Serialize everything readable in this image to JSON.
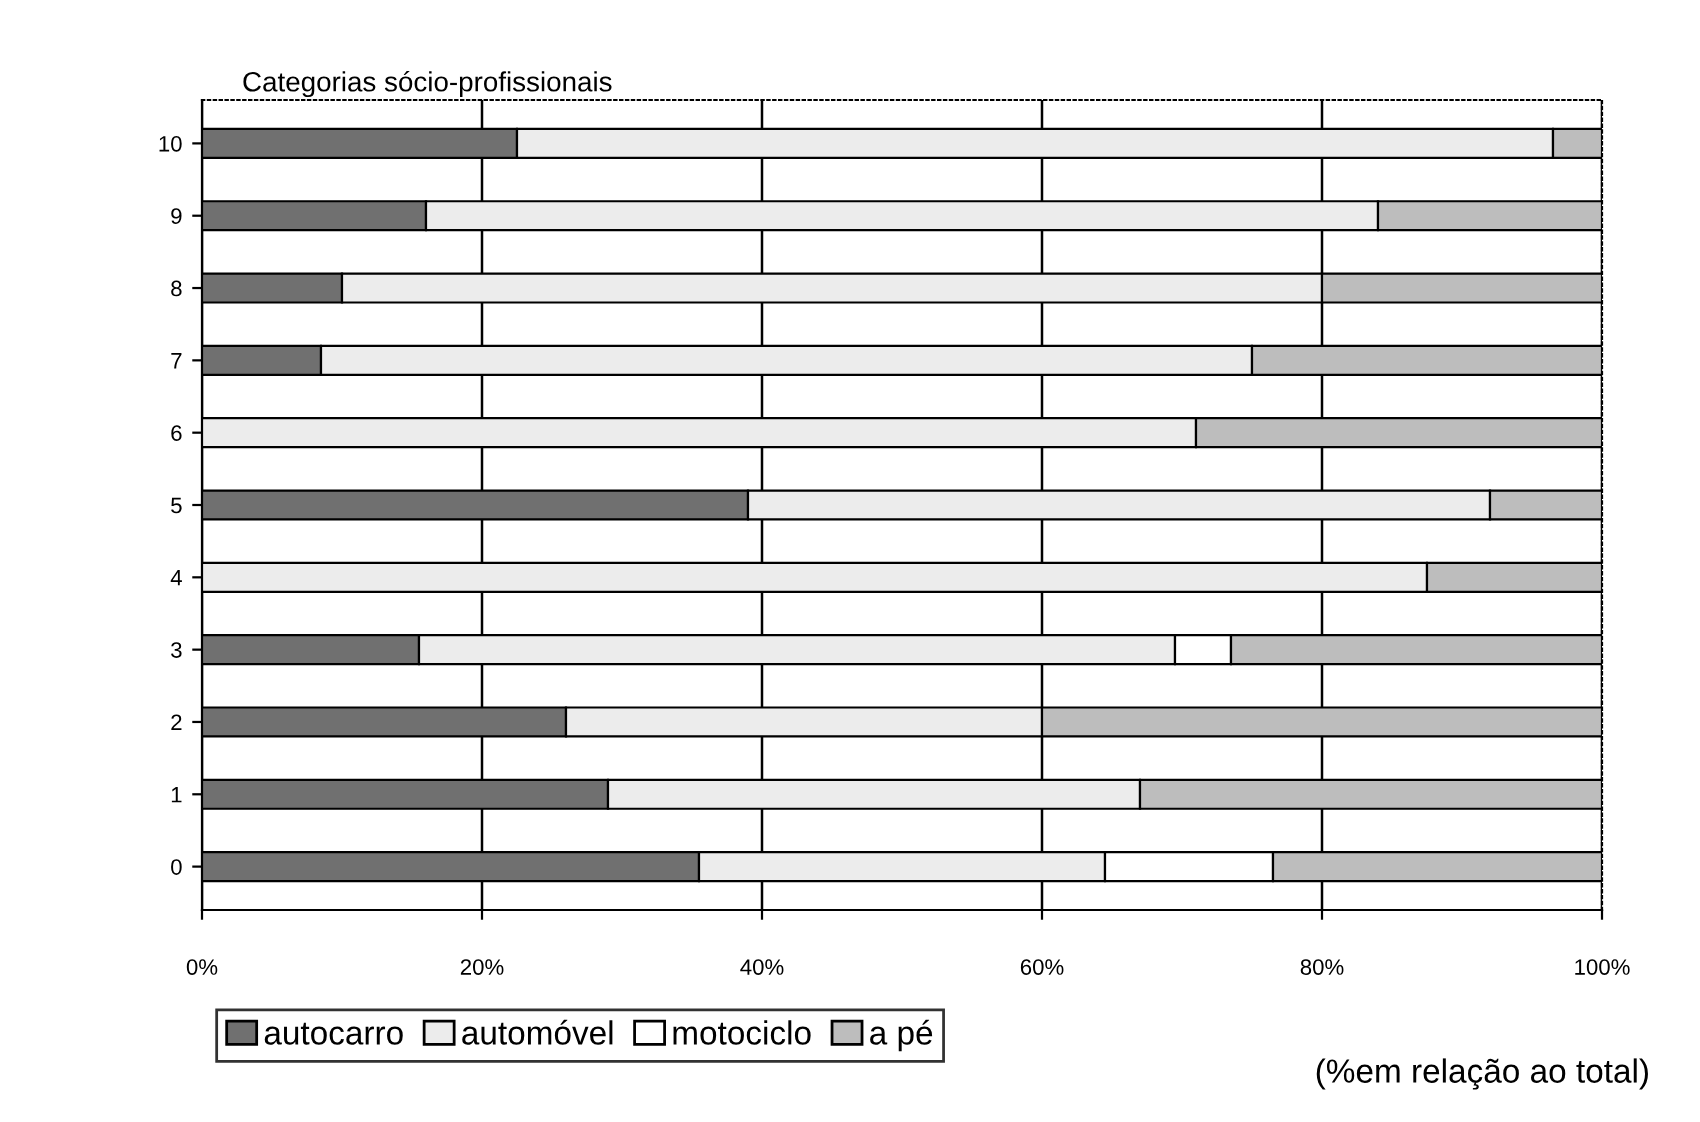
{
  "chart_data": {
    "type": "bar",
    "orientation": "horizontal",
    "stacked": true,
    "title": "Categorias sócio-profissionais",
    "categories": [
      "10",
      "9",
      "8",
      "7",
      "6",
      "5",
      "4",
      "3",
      "2",
      "1",
      "0"
    ],
    "series": [
      {
        "name": "autocarro",
        "color": "#707070",
        "values": [
          22.5,
          16,
          10,
          8.5,
          0,
          39,
          0,
          15.5,
          26,
          29,
          35.5
        ]
      },
      {
        "name": "automóvel",
        "color": "#ececec",
        "values": [
          74,
          68,
          70,
          66.5,
          71,
          53,
          87.5,
          54,
          34,
          38,
          29
        ]
      },
      {
        "name": "motociclo",
        "color": "#ffffff",
        "values": [
          0,
          0,
          0,
          0,
          0,
          0,
          0,
          4,
          0,
          0,
          12
        ]
      },
      {
        "name": "a pé",
        "color": "#bdbdbd",
        "values": [
          3.5,
          16,
          20,
          25,
          29,
          8,
          12.5,
          26.5,
          40,
          33,
          23.5
        ]
      }
    ],
    "xlim": [
      0,
      100
    ],
    "xticks": [
      {
        "value": 0,
        "label": "0%"
      },
      {
        "value": 20,
        "label": "20%"
      },
      {
        "value": 40,
        "label": "40%"
      },
      {
        "value": 60,
        "label": "60%"
      },
      {
        "value": 80,
        "label": "80%"
      },
      {
        "value": 100,
        "label": "100%"
      }
    ],
    "grid": "x",
    "legend": "bottom",
    "annotations": [
      "(%em relação ao total)"
    ]
  }
}
